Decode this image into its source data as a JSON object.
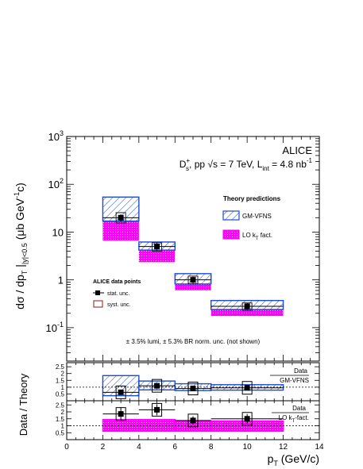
{
  "chart_data": [
    {
      "type": "bar",
      "panel": "main",
      "ylabel": "dσ / dp_T |_{|y|<0.5} (μb GeV^{-1}c)",
      "yscale": "log",
      "ylim": [
        0.02,
        1000
      ],
      "xlim": [
        0,
        14
      ],
      "y_ticks": [
        "10^{-1}",
        "1",
        "10",
        "10^{2}",
        "10^{3}"
      ],
      "experiment": "ALICE",
      "info": "D_s^+, pp √s = 7 TeV, L_int = 4.8 nb^-1",
      "theory_title": "Theory predictions",
      "theory_legend": [
        {
          "label": "GM-VFNS",
          "color": "#1f4bcc",
          "style": "hatched"
        },
        {
          "label": "LO k_T fact.",
          "color": "#ff00ff",
          "style": "dotted"
        }
      ],
      "data_title": "ALICE data points",
      "data_legend": [
        {
          "label": "stat. unc.",
          "marker": "square"
        },
        {
          "label": "syst. unc.",
          "marker": "open-box"
        }
      ],
      "note": "± 3.5% lumi, ± 5.3% BR norm. unc. (not shown)",
      "bins": [
        [
          2,
          4
        ],
        [
          4,
          6
        ],
        [
          6,
          8
        ],
        [
          8,
          12
        ]
      ],
      "data": {
        "x": [
          3,
          5,
          7,
          10
        ],
        "y": [
          20,
          5.0,
          1.0,
          0.28
        ],
        "stat_err": [
          3.5,
          1.0,
          0.18,
          0.05
        ],
        "syst_box": [
          [
            15.5,
            25.5
          ],
          [
            4.0,
            6.0
          ],
          [
            0.83,
            1.2
          ],
          [
            0.23,
            0.33
          ]
        ]
      },
      "gm_vfns": {
        "low": [
          17,
          4.2,
          0.82,
          0.24
        ],
        "high": [
          54,
          6.2,
          1.35,
          0.37
        ]
      },
      "lo_kt": {
        "low": [
          6.8,
          2.4,
          0.62,
          0.18
        ],
        "high": [
          17,
          4.2,
          0.82,
          0.24
        ]
      }
    },
    {
      "type": "bar",
      "panel": "ratio-gmvfns",
      "label_num": "Data",
      "label_den": "GM-VFNS",
      "ylim": [
        0,
        2.8
      ],
      "y_ticks": [
        "0.5",
        "1",
        "1.5",
        "2",
        "2.5"
      ],
      "bins": [
        [
          2,
          4
        ],
        [
          4,
          6
        ],
        [
          6,
          8
        ],
        [
          8,
          12
        ]
      ],
      "data": {
        "x": [
          3,
          5,
          7,
          10
        ],
        "y": [
          0.62,
          1.1,
          0.9,
          0.95
        ],
        "stat_err": [
          0.15,
          0.2,
          0.12,
          0.15
        ]
      },
      "theory_band": {
        "low": [
          0.37,
          0.8,
          0.75,
          0.78
        ],
        "high": [
          1.85,
          1.45,
          1.25,
          1.18
        ]
      }
    },
    {
      "type": "bar",
      "panel": "ratio-lokt",
      "label_num": "Data",
      "label_den": "LO k_T fact.",
      "ylim": [
        0,
        2.8
      ],
      "y_ticks": [
        "0.5",
        "1",
        "1.5",
        "2",
        "2.5"
      ],
      "bins": [
        [
          2,
          4
        ],
        [
          4,
          6
        ],
        [
          6,
          8
        ],
        [
          8,
          12
        ]
      ],
      "data": {
        "x": [
          3,
          5,
          7,
          10
        ],
        "y": [
          1.85,
          2.15,
          1.38,
          1.5
        ],
        "stat_err": [
          0.5,
          0.4,
          0.3,
          0.35
        ]
      },
      "theory_band": {
        "low": [
          0.6,
          0.6,
          0.6,
          0.6
        ],
        "high": [
          1.45,
          1.45,
          1.35,
          1.35
        ]
      }
    }
  ],
  "shared": {
    "ratio_ylabel": "Data / Theory",
    "xlabel": "p_T (GeV/c)",
    "x_ticks": [
      "0",
      "2",
      "4",
      "6",
      "8",
      "10",
      "12",
      "14"
    ]
  }
}
